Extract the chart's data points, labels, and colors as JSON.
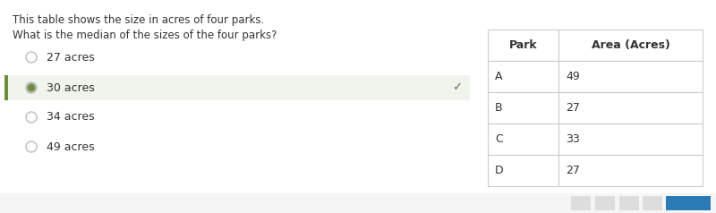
{
  "title_line1": "This table shows the size in acres of four parks.",
  "title_line2": "What is the median of the sizes of the four parks?",
  "options": [
    "27 acres",
    "30 acres",
    "34 acres",
    "49 acres"
  ],
  "selected_option_idx": 1,
  "selected_bg_color": "#f0f4ec",
  "selected_border_color": "#6b8e3e",
  "checkmark_color": "#5a7a2e",
  "radio_color": "#bbbbbb",
  "table_headers": [
    "Park",
    "Area (Acres)"
  ],
  "table_rows": [
    [
      "A",
      "49"
    ],
    [
      "B",
      "27"
    ],
    [
      "C",
      "33"
    ],
    [
      "D",
      "27"
    ]
  ],
  "bg_color": "#f5f5f5",
  "text_color": "#333333",
  "border_color": "#cccccc",
  "bottom_button_color": "#2a7ab5",
  "font_size_title": 8.5,
  "font_size_options": 9.0,
  "font_size_table": 9.0
}
